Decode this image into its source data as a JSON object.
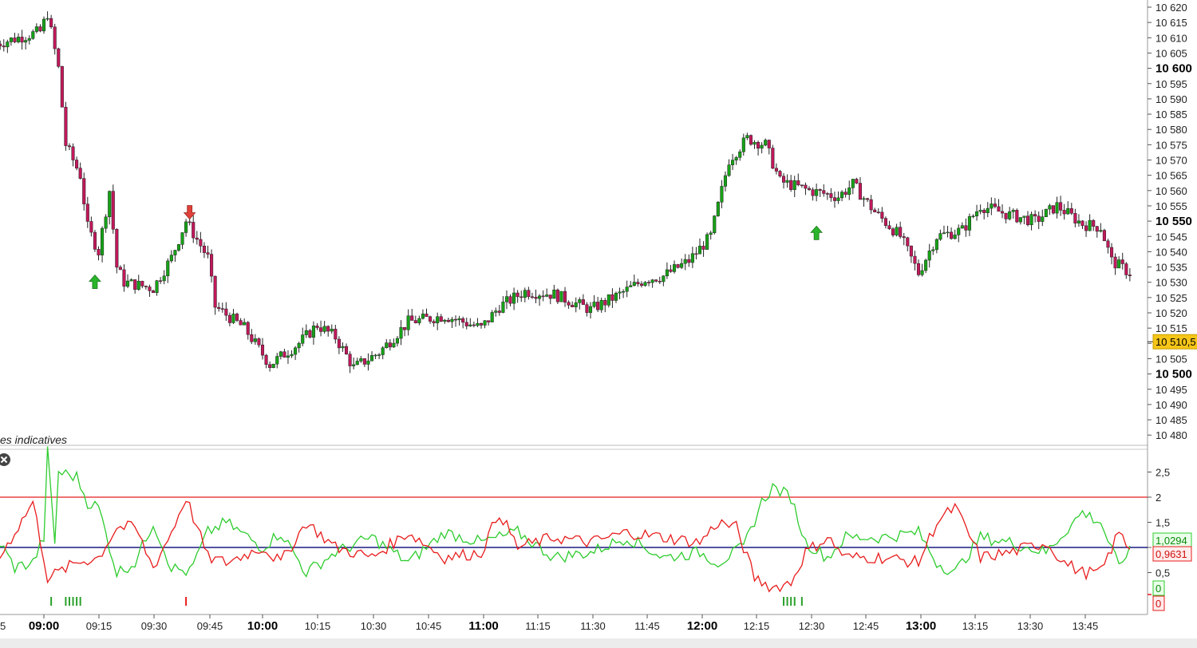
{
  "colors": {
    "up_candle": "#16a316",
    "down_candle": "#c2185b",
    "wick": "#222222",
    "price_tag_bg": "#f5c518",
    "green_line": "#2ecc2e",
    "red_line": "#e81c1c",
    "mid_line": "#1a1a80",
    "arrow_up": "#2ab52a",
    "arrow_down": "#e0413a"
  },
  "price_axis": {
    "ticks": [
      "10 620",
      "10 615",
      "10 610",
      "10 605",
      "10 600",
      "10 595",
      "10 590",
      "10 585",
      "10 580",
      "10 575",
      "10 570",
      "10 565",
      "10 560",
      "10 555",
      "10 550",
      "10 545",
      "10 540",
      "10 535",
      "10 530",
      "10 525",
      "10 520",
      "10 515",
      "10 510",
      "10 505",
      "10 500",
      "10 495",
      "10 490",
      "10 485",
      "10 480"
    ],
    "major": [
      "10 600",
      "10 550",
      "10 500"
    ],
    "current_price_label": "10 510,5"
  },
  "indicator_axis": {
    "ticks": [
      "2,5",
      "2",
      "1,5",
      "1",
      "0,5"
    ],
    "green_value": "1,0294",
    "red_value": "0,9631",
    "green_count": "0",
    "red_count": "0"
  },
  "time_axis": {
    "labels": [
      "5",
      "09:00",
      "09:15",
      "09:30",
      "09:45",
      "10:00",
      "10:15",
      "10:30",
      "10:45",
      "11:00",
      "11:15",
      "11:30",
      "11:45",
      "12:00",
      "12:15",
      "12:30",
      "12:45",
      "13:00",
      "13:15",
      "13:30",
      "13:45"
    ],
    "major": [
      "09:00",
      "10:00",
      "11:00",
      "12:00",
      "13:00"
    ]
  },
  "indicator_title": "es indicatives",
  "chart_data": [
    {
      "type": "candlestick",
      "ylim": [
        10478,
        10622
      ],
      "x_range": [
        "08:47",
        "13:58"
      ],
      "key_points": [
        {
          "t": "08:47",
          "price": 10608
        },
        {
          "t": "08:59",
          "price": 10612
        },
        {
          "t": "09:01",
          "price": 10618
        },
        {
          "t": "09:04",
          "price": 10600
        },
        {
          "t": "09:06",
          "price": 10575
        },
        {
          "t": "09:10",
          "price": 10565
        },
        {
          "t": "09:12",
          "price": 10548
        },
        {
          "t": "09:15",
          "price": 10540
        },
        {
          "t": "09:18",
          "price": 10560
        },
        {
          "t": "09:20",
          "price": 10535
        },
        {
          "t": "09:22",
          "price": 10530
        },
        {
          "t": "09:30",
          "price": 10528
        },
        {
          "t": "09:35",
          "price": 10538
        },
        {
          "t": "09:39",
          "price": 10550
        },
        {
          "t": "09:45",
          "price": 10538
        },
        {
          "t": "09:47",
          "price": 10522
        },
        {
          "t": "09:55",
          "price": 10515
        },
        {
          "t": "10:02",
          "price": 10503
        },
        {
          "t": "10:10",
          "price": 10510
        },
        {
          "t": "10:15",
          "price": 10516
        },
        {
          "t": "10:20",
          "price": 10512
        },
        {
          "t": "10:25",
          "price": 10502
        },
        {
          "t": "10:32",
          "price": 10507
        },
        {
          "t": "10:40",
          "price": 10517
        },
        {
          "t": "10:50",
          "price": 10519
        },
        {
          "t": "11:00",
          "price": 10515
        },
        {
          "t": "11:05",
          "price": 10522
        },
        {
          "t": "11:12",
          "price": 10527
        },
        {
          "t": "11:20",
          "price": 10526
        },
        {
          "t": "11:30",
          "price": 10521
        },
        {
          "t": "11:38",
          "price": 10526
        },
        {
          "t": "11:45",
          "price": 10531
        },
        {
          "t": "11:50",
          "price": 10532
        },
        {
          "t": "11:57",
          "price": 10537
        },
        {
          "t": "12:03",
          "price": 10545
        },
        {
          "t": "12:08",
          "price": 10570
        },
        {
          "t": "12:13",
          "price": 10577
        },
        {
          "t": "12:18",
          "price": 10575
        },
        {
          "t": "12:22",
          "price": 10563
        },
        {
          "t": "12:30",
          "price": 10560
        },
        {
          "t": "12:38",
          "price": 10558
        },
        {
          "t": "12:42",
          "price": 10562
        },
        {
          "t": "12:48",
          "price": 10553
        },
        {
          "t": "12:55",
          "price": 10545
        },
        {
          "t": "13:00",
          "price": 10533
        },
        {
          "t": "13:05",
          "price": 10545
        },
        {
          "t": "13:12",
          "price": 10547
        },
        {
          "t": "13:17",
          "price": 10555
        },
        {
          "t": "13:25",
          "price": 10552
        },
        {
          "t": "13:32",
          "price": 10550
        },
        {
          "t": "13:38",
          "price": 10555
        },
        {
          "t": "13:45",
          "price": 10549
        },
        {
          "t": "13:50",
          "price": 10548
        },
        {
          "t": "13:53",
          "price": 10537
        },
        {
          "t": "13:58",
          "price": 10533
        }
      ],
      "current_price": 10510.5,
      "signals": [
        {
          "t": "09:14",
          "price": 10530,
          "direction": "up"
        },
        {
          "t": "09:40",
          "price": 10553,
          "direction": "down"
        },
        {
          "t": "12:32",
          "price": 10546,
          "direction": "up"
        }
      ]
    },
    {
      "type": "line",
      "ylim": [
        0,
        3
      ],
      "reference_lines": [
        {
          "value": 2,
          "color": "red"
        },
        {
          "value": 1,
          "color": "navy"
        }
      ],
      "series": [
        {
          "name": "green",
          "color": "#2ecc2e",
          "points": [
            [
              "08:47",
              1.2
            ],
            [
              "08:52",
              0.6
            ],
            [
              "08:57",
              0.7
            ],
            [
              "09:00",
              1.2
            ],
            [
              "09:01",
              2.9
            ],
            [
              "09:03",
              1.1
            ],
            [
              "09:04",
              2.5
            ],
            [
              "09:09",
              2.4
            ],
            [
              "09:12",
              1.9
            ],
            [
              "09:15",
              1.8
            ],
            [
              "09:20",
              0.5
            ],
            [
              "09:25",
              0.7
            ],
            [
              "09:30",
              1.5
            ],
            [
              "09:35",
              0.6
            ],
            [
              "09:40",
              0.5
            ],
            [
              "09:45",
              1.3
            ],
            [
              "09:50",
              1.5
            ],
            [
              "10:00",
              1.0
            ],
            [
              "10:05",
              1.3
            ],
            [
              "10:12",
              0.5
            ],
            [
              "10:20",
              0.9
            ],
            [
              "10:30",
              1.2
            ],
            [
              "10:40",
              0.7
            ],
            [
              "10:50",
              1.3
            ],
            [
              "11:00",
              1.1
            ],
            [
              "11:10",
              1.3
            ],
            [
              "11:20",
              0.8
            ],
            [
              "11:30",
              0.9
            ],
            [
              "11:40",
              1.2
            ],
            [
              "11:50",
              0.8
            ],
            [
              "12:00",
              0.9
            ],
            [
              "12:05",
              0.7
            ],
            [
              "12:12",
              1.0
            ],
            [
              "12:17",
              1.9
            ],
            [
              "12:20",
              2.2
            ],
            [
              "12:25",
              2.0
            ],
            [
              "12:29",
              1.1
            ],
            [
              "12:35",
              0.8
            ],
            [
              "12:40",
              1.2
            ],
            [
              "12:50",
              1.2
            ],
            [
              "13:00",
              1.3
            ],
            [
              "13:05",
              0.7
            ],
            [
              "13:10",
              0.5
            ],
            [
              "13:17",
              1.2
            ],
            [
              "13:25",
              1.1
            ],
            [
              "13:35",
              0.9
            ],
            [
              "13:40",
              1.3
            ],
            [
              "13:45",
              1.7
            ],
            [
              "13:50",
              1.5
            ],
            [
              "13:55",
              0.6
            ],
            [
              "13:58",
              1.0294
            ]
          ]
        },
        {
          "name": "red",
          "color": "#e81c1c",
          "points": [
            [
              "08:47",
              0.7
            ],
            [
              "08:52",
              1.3
            ],
            [
              "08:57",
              1.9
            ],
            [
              "09:00",
              0.8
            ],
            [
              "09:01",
              0.4
            ],
            [
              "09:04",
              0.5
            ],
            [
              "09:09",
              0.7
            ],
            [
              "09:15",
              0.8
            ],
            [
              "09:20",
              1.4
            ],
            [
              "09:25",
              1.4
            ],
            [
              "09:30",
              0.6
            ],
            [
              "09:35",
              1.3
            ],
            [
              "09:39",
              2.0
            ],
            [
              "09:45",
              0.8
            ],
            [
              "09:50",
              0.7
            ],
            [
              "10:00",
              1.0
            ],
            [
              "10:05",
              0.7
            ],
            [
              "10:12",
              1.5
            ],
            [
              "10:20",
              1.0
            ],
            [
              "10:30",
              0.8
            ],
            [
              "10:40",
              1.3
            ],
            [
              "10:50",
              0.8
            ],
            [
              "11:00",
              0.9
            ],
            [
              "11:05",
              1.7
            ],
            [
              "11:10",
              1.0
            ],
            [
              "11:20",
              1.2
            ],
            [
              "11:30",
              1.1
            ],
            [
              "11:40",
              1.3
            ],
            [
              "11:50",
              1.2
            ],
            [
              "12:00",
              1.1
            ],
            [
              "12:05",
              1.5
            ],
            [
              "12:10",
              1.4
            ],
            [
              "12:15",
              0.4
            ],
            [
              "12:20",
              0.2
            ],
            [
              "12:25",
              0.3
            ],
            [
              "12:29",
              0.9
            ],
            [
              "12:35",
              1.2
            ],
            [
              "12:40",
              0.8
            ],
            [
              "12:50",
              0.8
            ],
            [
              "13:00",
              0.7
            ],
            [
              "13:05",
              1.5
            ],
            [
              "13:10",
              1.8
            ],
            [
              "13:17",
              0.8
            ],
            [
              "13:25",
              0.9
            ],
            [
              "13:35",
              1.1
            ],
            [
              "13:40",
              0.7
            ],
            [
              "13:45",
              0.5
            ],
            [
              "13:50",
              0.5
            ],
            [
              "13:55",
              1.3
            ],
            [
              "13:58",
              0.9631
            ]
          ]
        }
      ],
      "signal_ticks": [
        {
          "t": "09:02",
          "color": "green"
        },
        {
          "t": "09:06",
          "color": "green"
        },
        {
          "t": "09:07",
          "color": "green"
        },
        {
          "t": "09:08",
          "color": "green"
        },
        {
          "t": "09:09",
          "color": "green"
        },
        {
          "t": "09:10",
          "color": "green"
        },
        {
          "t": "09:39",
          "color": "red"
        },
        {
          "t": "12:23",
          "color": "green"
        },
        {
          "t": "12:24",
          "color": "green"
        },
        {
          "t": "12:25",
          "color": "green"
        },
        {
          "t": "12:26",
          "color": "green"
        },
        {
          "t": "12:28",
          "color": "green"
        }
      ]
    }
  ]
}
